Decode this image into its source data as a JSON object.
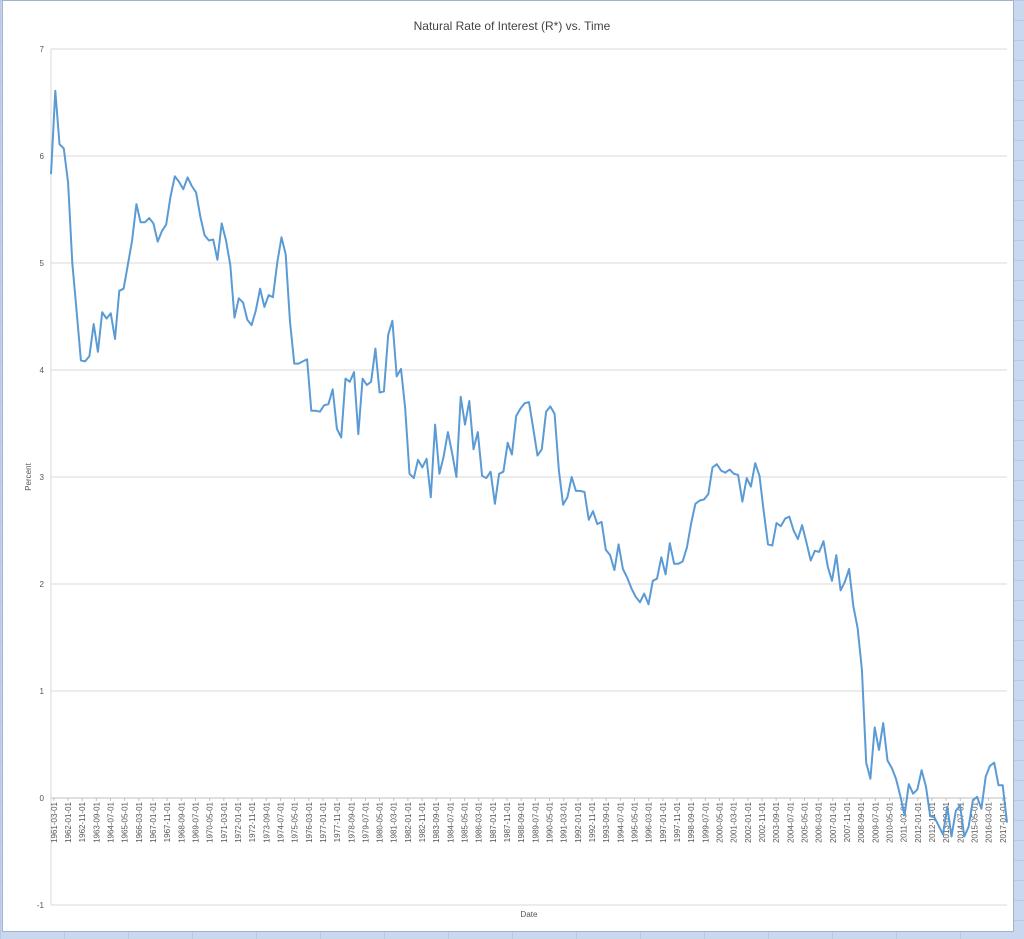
{
  "chart_data": {
    "type": "line",
    "title": "Natural Rate of Interest (R*) vs. Time",
    "xlabel": "Date",
    "ylabel": "Percent",
    "ylim": [
      -1,
      7
    ],
    "yticks": [
      -1,
      0,
      1,
      2,
      3,
      4,
      5,
      6,
      7
    ],
    "grid": true,
    "legend": "none",
    "line_color": "#5b9bd5",
    "x_tick_labels": [
      "1961-03-01",
      "1962-01-01",
      "1962-11-01",
      "1963-09-01",
      "1964-07-01",
      "1965-05-01",
      "1966-03-01",
      "1967-01-01",
      "1967-11-01",
      "1968-09-01",
      "1969-07-01",
      "1970-05-01",
      "1971-03-01",
      "1972-01-01",
      "1972-11-01",
      "1973-09-01",
      "1974-07-01",
      "1975-05-01",
      "1976-03-01",
      "1977-01-01",
      "1977-11-01",
      "1978-09-01",
      "1979-07-01",
      "1980-05-01",
      "1981-03-01",
      "1982-01-01",
      "1982-11-01",
      "1983-09-01",
      "1984-07-01",
      "1985-05-01",
      "1986-03-01",
      "1987-01-01",
      "1987-11-01",
      "1988-09-01",
      "1989-07-01",
      "1990-05-01",
      "1991-03-01",
      "1992-01-01",
      "1992-11-01",
      "1993-09-01",
      "1994-07-01",
      "1995-05-01",
      "1996-03-01",
      "1997-01-01",
      "1997-11-01",
      "1998-09-01",
      "1999-07-01",
      "2000-05-01",
      "2001-03-01",
      "2002-01-01",
      "2002-11-01",
      "2003-09-01",
      "2004-07-01",
      "2005-05-01",
      "2006-03-01",
      "2007-01-01",
      "2007-11-01",
      "2008-09-01",
      "2009-07-01",
      "2010-05-01",
      "2011-03-01",
      "2012-01-01",
      "2012-11-01",
      "2013-09-01",
      "2014-07-01",
      "2015-05-01",
      "2016-03-01",
      "2017-01-01"
    ],
    "x_start": "1961-01-01",
    "x_end": "2017-04-01",
    "x_frequency": "quarterly",
    "series": [
      {
        "values": [
          5.83,
          6.61,
          6.11,
          6.07,
          5.75,
          5.0,
          4.55,
          4.09,
          4.08,
          4.13,
          4.43,
          4.17,
          4.54,
          4.48,
          4.53,
          4.29,
          4.74,
          4.76,
          4.98,
          5.21,
          5.55,
          5.38,
          5.38,
          5.42,
          5.37,
          5.2,
          5.3,
          5.36,
          5.62,
          5.81,
          5.76,
          5.69,
          5.8,
          5.72,
          5.66,
          5.43,
          5.26,
          5.21,
          5.22,
          5.03,
          5.37,
          5.21,
          4.98,
          4.49,
          4.67,
          4.63,
          4.47,
          4.42,
          4.56,
          4.76,
          4.59,
          4.7,
          4.68,
          5.0,
          5.24,
          5.08,
          4.45,
          4.06,
          4.06,
          4.08,
          4.1,
          3.62,
          3.62,
          3.61,
          3.67,
          3.68,
          3.82,
          3.45,
          3.37,
          3.92,
          3.89,
          3.98,
          3.4,
          3.92,
          3.86,
          3.89,
          4.2,
          3.79,
          3.8,
          4.33,
          4.46,
          3.94,
          4.01,
          3.64,
          3.03,
          2.99,
          3.16,
          3.09,
          3.17,
          2.81,
          3.49,
          3.03,
          3.19,
          3.42,
          3.22,
          3.0,
          3.75,
          3.49,
          3.71,
          3.26,
          3.42,
          3.01,
          2.99,
          3.05,
          2.75,
          3.03,
          3.05,
          3.32,
          3.21,
          3.57,
          3.64,
          3.69,
          3.7,
          3.45,
          3.2,
          3.26,
          3.61,
          3.66,
          3.59,
          3.06,
          2.74,
          2.81,
          3.0,
          2.87,
          2.87,
          2.86,
          2.6,
          2.68,
          2.56,
          2.58,
          2.32,
          2.27,
          2.13,
          2.37,
          2.14,
          2.06,
          1.96,
          1.88,
          1.83,
          1.91,
          1.81,
          2.03,
          2.05,
          2.25,
          2.09,
          2.38,
          2.19,
          2.19,
          2.21,
          2.34,
          2.57,
          2.75,
          2.78,
          2.79,
          2.84,
          3.09,
          3.12,
          3.06,
          3.04,
          3.07,
          3.03,
          3.02,
          2.77,
          2.99,
          2.91,
          3.13,
          3.01,
          2.68,
          2.37,
          2.36,
          2.57,
          2.54,
          2.61,
          2.63,
          2.5,
          2.42,
          2.55,
          2.39,
          2.22,
          2.31,
          2.3,
          2.4,
          2.16,
          2.03,
          2.27,
          1.94,
          2.02,
          2.14,
          1.79,
          1.59,
          1.2,
          0.33,
          0.18,
          0.66,
          0.45,
          0.7,
          0.35,
          0.28,
          0.18,
          0.02,
          -0.16,
          0.13,
          0.04,
          0.08,
          0.26,
          0.11,
          -0.17,
          -0.18,
          -0.26,
          -0.34,
          -0.08,
          -0.36,
          -0.12,
          -0.07,
          -0.36,
          -0.27,
          -0.02,
          0.01,
          -0.1,
          0.2,
          0.3,
          0.33,
          0.12,
          0.12,
          -0.23
        ]
      }
    ]
  }
}
